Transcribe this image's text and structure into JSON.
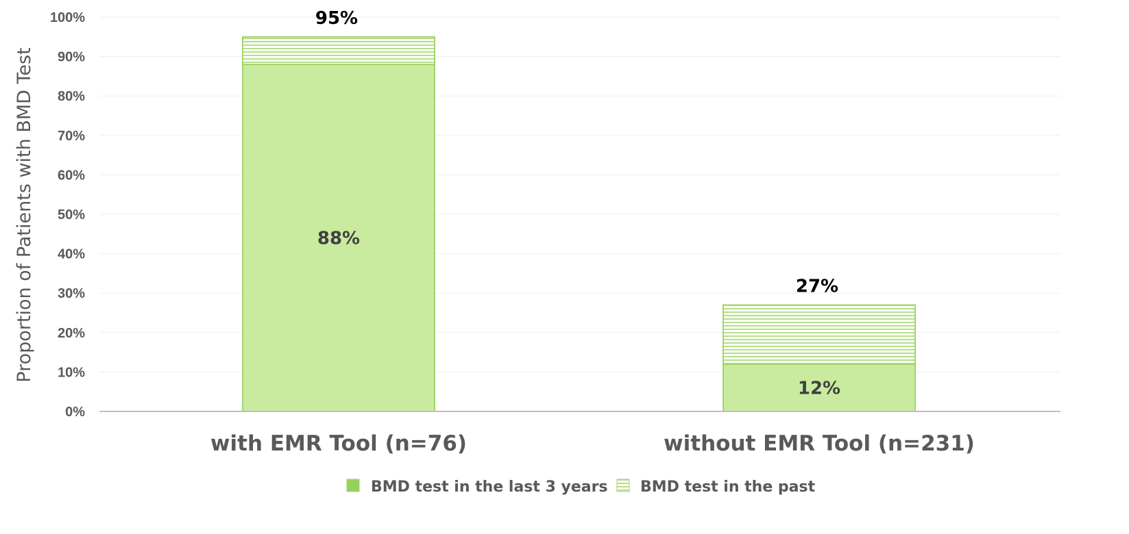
{
  "chart_data": {
    "type": "bar",
    "stacked": true,
    "categories": [
      "with EMR Tool (n=76)",
      "without EMR Tool (n=231)"
    ],
    "series": [
      {
        "name": "BMD test in the last 3 years",
        "values": [
          88,
          12
        ],
        "labels": [
          "88%",
          "12%"
        ],
        "color": "#c9eba0",
        "edge": "#a3d46a",
        "pattern": "solid"
      },
      {
        "name": "BMD test in the past",
        "values": [
          7,
          15
        ],
        "color": "#c9eba0",
        "edge": "#a3d46a",
        "pattern": "horizontal-stripes"
      }
    ],
    "totals": {
      "values": [
        95,
        27
      ],
      "labels": [
        "95%",
        "27%"
      ]
    },
    "ylabel": "Proportion of Patients with BMD Test",
    "ylim": [
      0,
      100
    ],
    "yticks": [
      0,
      10,
      20,
      30,
      40,
      50,
      60,
      70,
      80,
      90,
      100
    ],
    "ytick_labels": [
      "0%",
      "10%",
      "20%",
      "30%",
      "40%",
      "50%",
      "60%",
      "70%",
      "80%",
      "90%",
      "100%"
    ],
    "grid": true,
    "legend_position": "bottom",
    "colors": {
      "gridline": "#efefef",
      "axis": "#bfbfbf",
      "stripe": "#9ccf63"
    }
  }
}
